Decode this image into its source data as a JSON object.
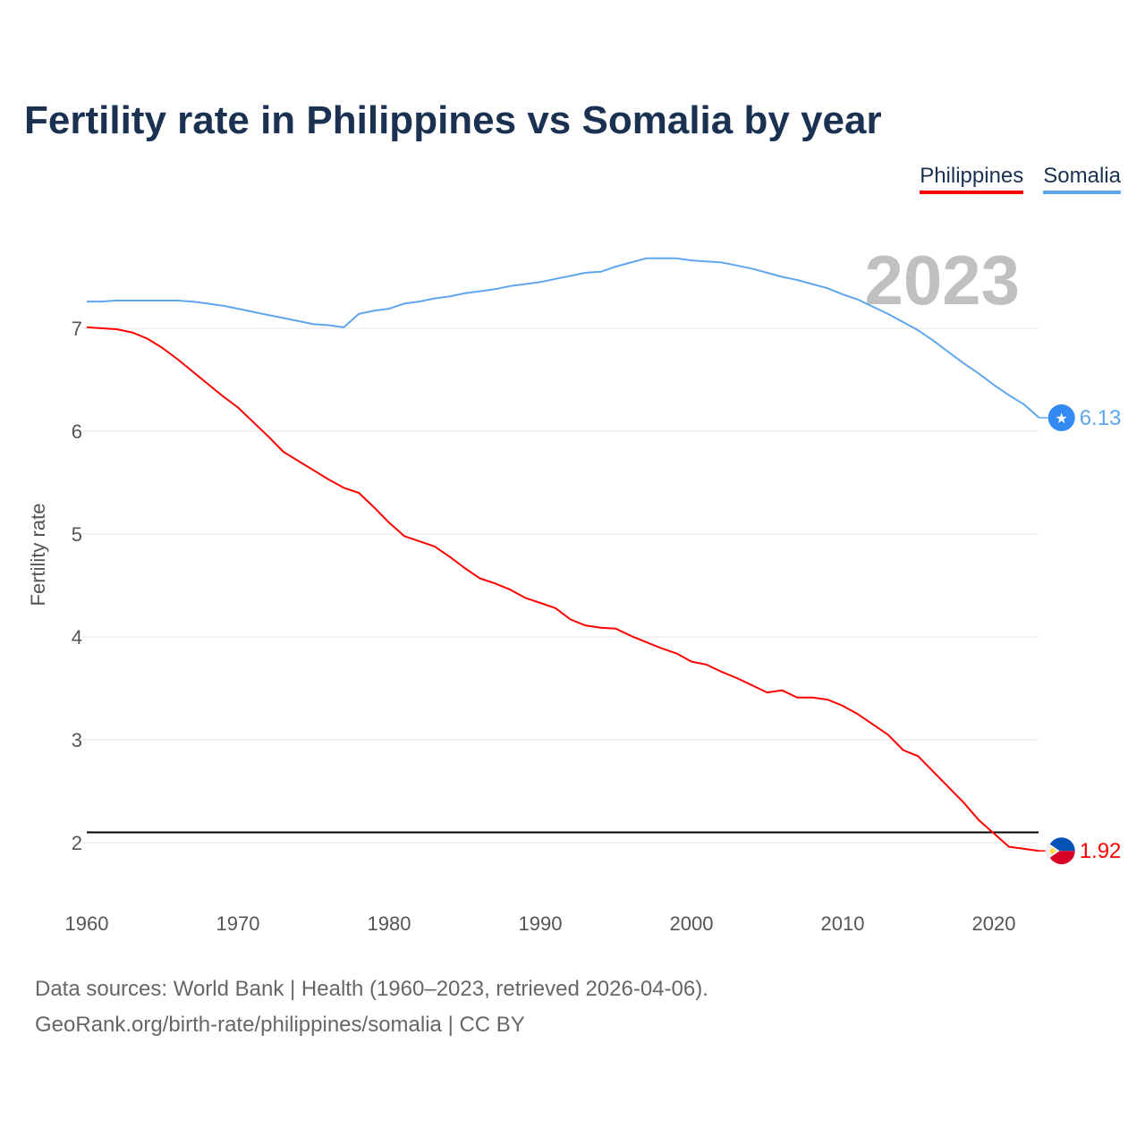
{
  "chart_data": {
    "type": "line",
    "title": "Fertility rate in Philippines vs Somalia by year",
    "xlabel": "",
    "ylabel": "Fertility rate",
    "xlim": [
      1960,
      2023
    ],
    "ylim": [
      1.5,
      7.9
    ],
    "x_ticks": [
      1960,
      1970,
      1980,
      1990,
      2000,
      2010,
      2020
    ],
    "y_ticks": [
      2,
      3,
      4,
      5,
      6,
      7
    ],
    "grid": true,
    "legend_position": "top-right",
    "year_label": "2023",
    "reference_line": 2.1,
    "x": [
      1960,
      1961,
      1962,
      1963,
      1964,
      1965,
      1966,
      1967,
      1968,
      1969,
      1970,
      1971,
      1972,
      1973,
      1974,
      1975,
      1976,
      1977,
      1978,
      1979,
      1980,
      1981,
      1982,
      1983,
      1984,
      1985,
      1986,
      1987,
      1988,
      1989,
      1990,
      1991,
      1992,
      1993,
      1994,
      1995,
      1996,
      1997,
      1998,
      1999,
      2000,
      2001,
      2002,
      2003,
      2004,
      2005,
      2006,
      2007,
      2008,
      2009,
      2010,
      2011,
      2012,
      2013,
      2014,
      2015,
      2016,
      2017,
      2018,
      2019,
      2020,
      2021,
      2022,
      2023
    ],
    "series": [
      {
        "name": "Philippines",
        "color": "#ff0000",
        "end_label": "1.92",
        "values": [
          7.01,
          7.0,
          6.99,
          6.96,
          6.9,
          6.81,
          6.7,
          6.58,
          6.46,
          6.34,
          6.23,
          6.09,
          5.95,
          5.8,
          5.71,
          5.62,
          5.53,
          5.45,
          5.4,
          5.26,
          5.11,
          4.98,
          4.93,
          4.88,
          4.78,
          4.67,
          4.57,
          4.52,
          4.46,
          4.38,
          4.33,
          4.28,
          4.17,
          4.11,
          4.09,
          4.08,
          4.01,
          3.95,
          3.89,
          3.84,
          3.76,
          3.73,
          3.66,
          3.6,
          3.53,
          3.46,
          3.48,
          3.41,
          3.41,
          3.39,
          3.33,
          3.25,
          3.15,
          3.05,
          2.9,
          2.84,
          2.69,
          2.54,
          2.39,
          2.22,
          2.09,
          1.96,
          1.94,
          1.92
        ]
      },
      {
        "name": "Somalia",
        "color": "#5ea6ee",
        "end_label": "6.13",
        "values": [
          7.26,
          7.26,
          7.27,
          7.27,
          7.27,
          7.27,
          7.27,
          7.26,
          7.24,
          7.22,
          7.19,
          7.16,
          7.13,
          7.1,
          7.07,
          7.04,
          7.03,
          7.01,
          7.14,
          7.17,
          7.19,
          7.24,
          7.26,
          7.29,
          7.31,
          7.34,
          7.36,
          7.38,
          7.41,
          7.43,
          7.45,
          7.48,
          7.51,
          7.54,
          7.55,
          7.6,
          7.64,
          7.68,
          7.68,
          7.68,
          7.66,
          7.65,
          7.64,
          7.61,
          7.58,
          7.54,
          7.5,
          7.47,
          7.43,
          7.39,
          7.33,
          7.28,
          7.21,
          7.14,
          7.06,
          6.98,
          6.88,
          6.77,
          6.66,
          6.56,
          6.45,
          6.35,
          6.26,
          6.13
        ]
      }
    ]
  },
  "footer": {
    "line1": "Data sources: World Bank | Health (1960–2023, retrieved 2026-04-06).",
    "line2": "GeoRank.org/birth-rate/philippines/somalia | CC BY"
  }
}
